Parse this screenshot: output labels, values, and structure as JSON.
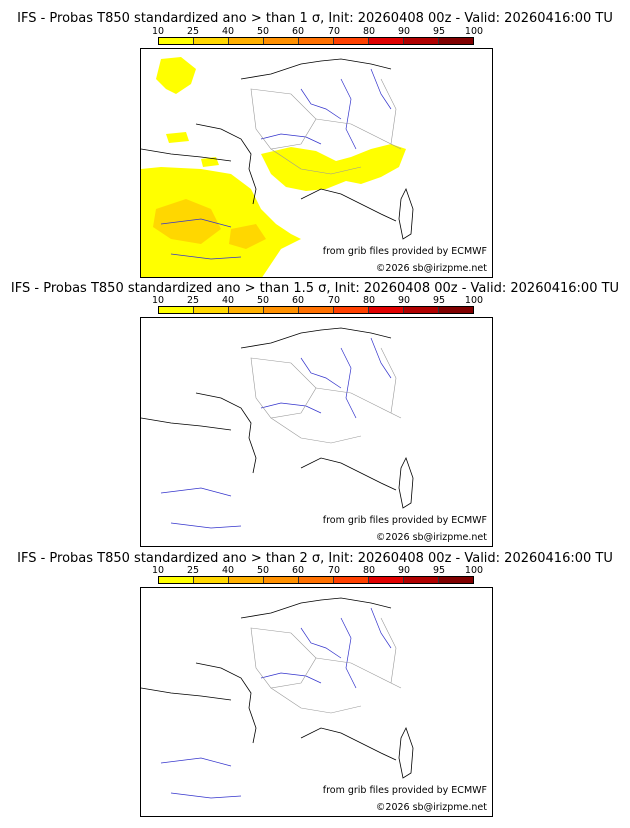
{
  "panels": [
    {
      "title": "IFS - Probas T850  standardized ano > than 1 σ, Init: 20260408 00z - Valid: 20260416:00 TU",
      "threshold": "1"
    },
    {
      "title": "IFS - Probas T850  standardized ano > than 1.5 σ, Init: 20260408 00z - Valid: 20260416:00 TU",
      "threshold": "1.5"
    },
    {
      "title": "IFS - Probas T850  standardized ano > than 2 σ, Init: 20260408 00z - Valid: 20260416:00 TU",
      "threshold": "2"
    }
  ],
  "scale": {
    "labels": [
      "10",
      "25",
      "40",
      "50",
      "60",
      "70",
      "80",
      "90",
      "95",
      "100"
    ],
    "colors": [
      "#ffff00",
      "#ffd700",
      "#ffb000",
      "#ff9000",
      "#ff7000",
      "#ff4000",
      "#e00000",
      "#b00000",
      "#800000"
    ]
  },
  "credits": {
    "source": "from grib files provided by ECMWF",
    "copyright": "©2026 sb@irizpme.net"
  },
  "colors": {
    "prob_low": "#ffff00",
    "prob_mid": "#ffd700",
    "coast": "#000000",
    "rivers": "#3333cc",
    "borders": "#999999"
  }
}
